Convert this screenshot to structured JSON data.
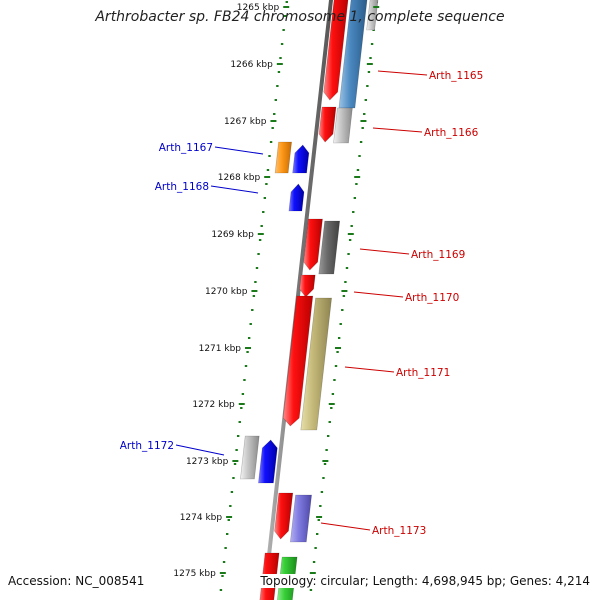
{
  "title": "Arthrobacter sp. FB24 chromosome 1, complete sequence",
  "accession": "Accession: NC_008541",
  "stats": "Topology: circular; Length: 4,698,945 bp; Genes: 4,214",
  "colors": {
    "backbone": "#777777",
    "tick": "#1a7a1a",
    "minus_label": "#0000cc",
    "plus_label": "#cc0000"
  },
  "kbp_labels": [
    "1265 kbp",
    "1266 kbp",
    "1267 kbp",
    "1268 kbp",
    "1269 kbp",
    "1270 kbp",
    "1271 kbp",
    "1272 kbp",
    "1273 kbp",
    "1274 kbp",
    "1275 kbp"
  ],
  "gene_labels": {
    "left": [
      "Arth_1167",
      "Arth_1168",
      "Arth_1172"
    ],
    "right": [
      "Arth_1165",
      "Arth_1166",
      "Arth_1169",
      "Arth_1170",
      "Arth_1171",
      "Arth_1173"
    ]
  }
}
